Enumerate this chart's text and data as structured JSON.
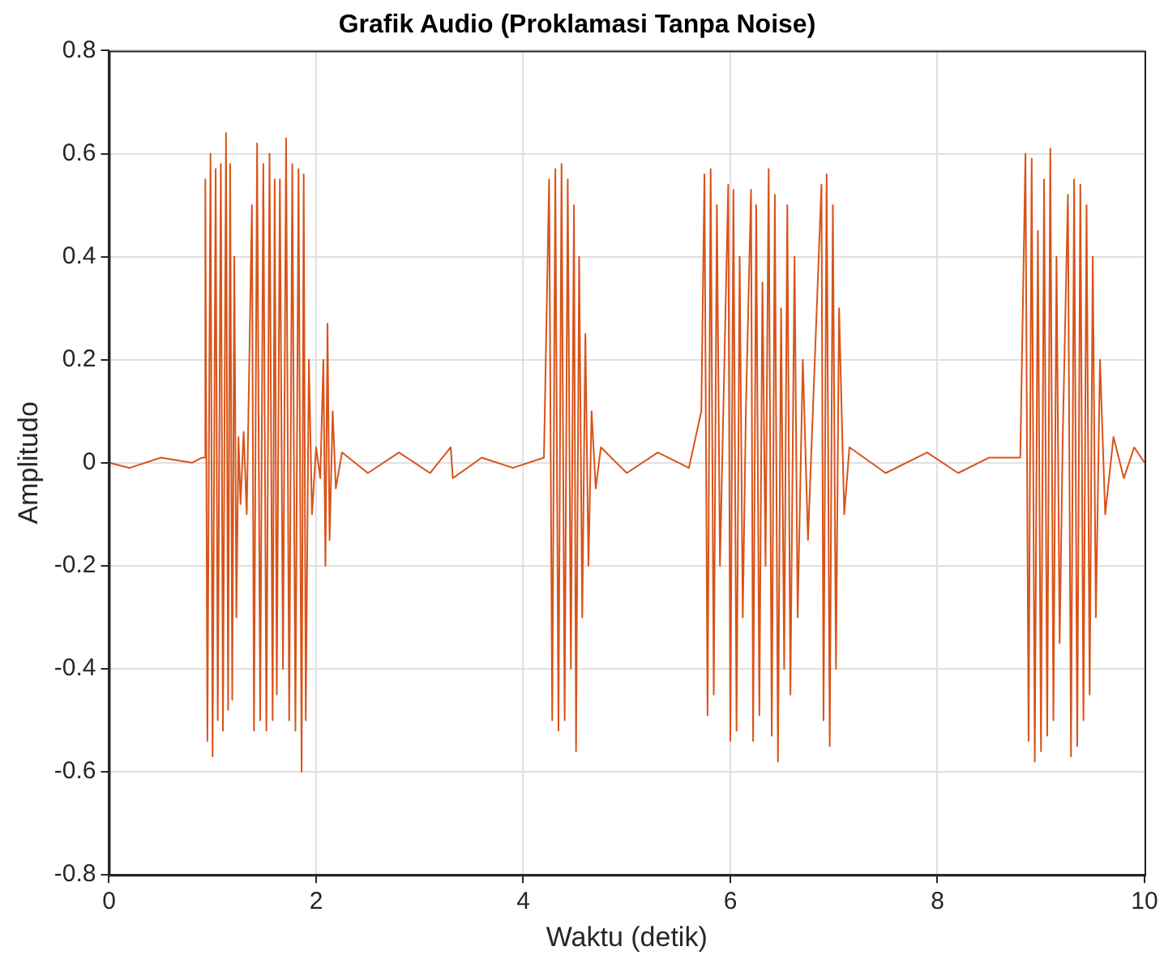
{
  "chart_data": {
    "type": "line",
    "title": "Grafik Audio (Proklamasi Tanpa Noise)",
    "xlabel": "Waktu (detik)",
    "ylabel": "Amplitudo",
    "x": [
      0,
      0.2,
      0.5,
      0.8,
      0.9,
      0.92,
      0.93,
      0.95,
      0.98,
      1.0,
      1.03,
      1.05,
      1.08,
      1.1,
      1.13,
      1.15,
      1.17,
      1.19,
      1.21,
      1.23,
      1.25,
      1.27,
      1.3,
      1.33,
      1.38,
      1.4,
      1.43,
      1.46,
      1.49,
      1.52,
      1.55,
      1.58,
      1.6,
      1.62,
      1.65,
      1.68,
      1.71,
      1.74,
      1.77,
      1.8,
      1.83,
      1.86,
      1.88,
      1.9,
      1.93,
      1.96,
      2.0,
      2.04,
      2.07,
      2.09,
      2.11,
      2.13,
      2.16,
      2.19,
      2.25,
      2.5,
      2.8,
      3.1,
      3.3,
      3.32,
      3.6,
      3.9,
      4.2,
      4.25,
      4.28,
      4.31,
      4.34,
      4.37,
      4.4,
      4.43,
      4.46,
      4.49,
      4.51,
      4.54,
      4.57,
      4.6,
      4.63,
      4.66,
      4.7,
      4.75,
      5.0,
      5.3,
      5.6,
      5.72,
      5.75,
      5.78,
      5.81,
      5.84,
      5.87,
      5.9,
      5.93,
      5.98,
      6.0,
      6.03,
      6.06,
      6.09,
      6.12,
      6.15,
      6.2,
      6.22,
      6.25,
      6.28,
      6.31,
      6.34,
      6.37,
      6.4,
      6.43,
      6.46,
      6.49,
      6.52,
      6.55,
      6.58,
      6.62,
      6.65,
      6.7,
      6.75,
      6.88,
      6.9,
      6.93,
      6.96,
      6.99,
      7.02,
      7.05,
      7.1,
      7.15,
      7.5,
      7.9,
      8.2,
      8.5,
      8.8,
      8.85,
      8.88,
      8.91,
      8.94,
      8.97,
      9.0,
      9.03,
      9.06,
      9.09,
      9.12,
      9.15,
      9.18,
      9.21,
      9.26,
      9.29,
      9.32,
      9.35,
      9.38,
      9.41,
      9.44,
      9.47,
      9.5,
      9.53,
      9.57,
      9.62,
      9.7,
      9.8,
      9.9,
      10
    ],
    "series": [
      {
        "color": "#d95319",
        "values": [
          0,
          -0.01,
          0.01,
          0,
          0.01,
          0.01,
          0.55,
          -0.54,
          0.6,
          -0.57,
          0.57,
          -0.5,
          0.58,
          -0.52,
          0.64,
          -0.48,
          0.58,
          -0.46,
          0.4,
          -0.3,
          0.05,
          -0.08,
          0.06,
          -0.1,
          0.5,
          -0.52,
          0.62,
          -0.5,
          0.58,
          -0.52,
          0.6,
          -0.5,
          0.55,
          -0.45,
          0.55,
          -0.4,
          0.63,
          -0.5,
          0.58,
          -0.52,
          0.57,
          -0.6,
          0.56,
          -0.5,
          0.2,
          -0.1,
          0.03,
          -0.03,
          0.2,
          -0.2,
          0.27,
          -0.15,
          0.1,
          -0.05,
          0.02,
          -0.02,
          0.02,
          -0.02,
          0.03,
          -0.03,
          0.01,
          -0.01,
          0.01,
          0.55,
          -0.5,
          0.57,
          -0.52,
          0.58,
          -0.5,
          0.55,
          -0.4,
          0.5,
          -0.56,
          0.4,
          -0.3,
          0.25,
          -0.2,
          0.1,
          -0.05,
          0.03,
          -0.02,
          0.02,
          -0.01,
          0.1,
          0.56,
          -0.49,
          0.57,
          -0.45,
          0.5,
          -0.2,
          0.08,
          0.54,
          -0.54,
          0.53,
          -0.52,
          0.4,
          -0.3,
          0.1,
          0.53,
          -0.54,
          0.5,
          -0.49,
          0.35,
          -0.2,
          0.57,
          -0.53,
          0.52,
          -0.58,
          0.3,
          -0.4,
          0.5,
          -0.45,
          0.4,
          -0.3,
          0.2,
          -0.15,
          0.54,
          -0.5,
          0.56,
          -0.55,
          0.5,
          -0.4,
          0.3,
          -0.1,
          0.03,
          -0.02,
          0.02,
          -0.02,
          0.01,
          0.01,
          0.6,
          -0.54,
          0.59,
          -0.58,
          0.45,
          -0.56,
          0.55,
          -0.53,
          0.61,
          -0.5,
          0.4,
          -0.35,
          0.05,
          0.52,
          -0.57,
          0.55,
          -0.55,
          0.54,
          -0.5,
          0.5,
          -0.45,
          0.4,
          -0.3,
          0.2,
          -0.1,
          0.05,
          -0.03,
          0.03,
          0
        ]
      }
    ],
    "xlim": [
      0,
      10
    ],
    "xticks": [
      0,
      2,
      4,
      6,
      8,
      10
    ],
    "ylim": [
      -0.8,
      0.8
    ],
    "yticks": [
      -0.8,
      -0.6,
      -0.4,
      -0.2,
      0,
      0.2,
      0.4,
      0.6,
      0.8
    ],
    "grid": true,
    "marker": "none",
    "line_style": "solid",
    "legend": false
  }
}
